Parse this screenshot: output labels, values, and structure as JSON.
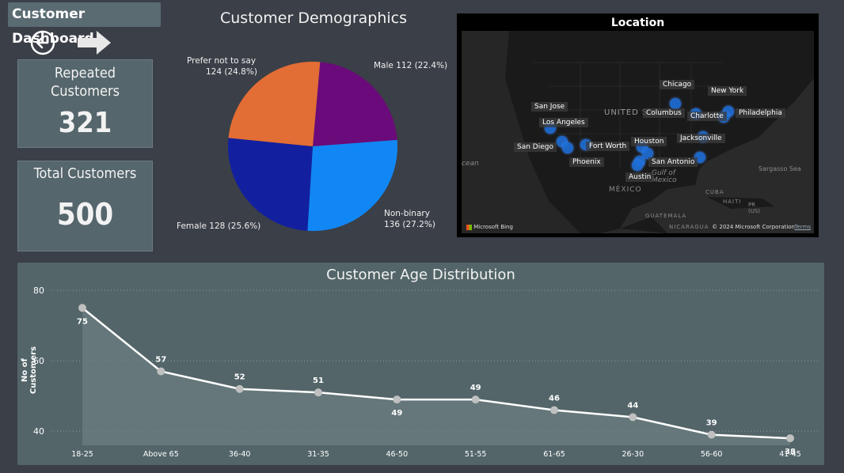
{
  "header": {
    "title": "Customer Dashboard"
  },
  "nav": {
    "back_icon": "circle-left-arrow-icon",
    "forward_icon": "right-arrow-icon"
  },
  "cards": {
    "repeated": {
      "label": "Repeated Customers",
      "value": "321"
    },
    "total": {
      "label": "Total Customers",
      "value": "500"
    }
  },
  "demographics": {
    "title": "Customer Demographics",
    "labels": {
      "male": "Male 112 (22.4%)",
      "nonbinary_line1": "Non-binary",
      "nonbinary_line2": "136 (27.2%)",
      "female": "Female 128 (25.6%)",
      "prefer_line1": "Prefer not to say",
      "prefer_line2": "124 (24.8%)"
    }
  },
  "map": {
    "title": "Location",
    "cities": [
      "Chicago",
      "New York",
      "San Jose",
      "Columbus",
      "Charlotte",
      "Philadelphia",
      "Los Angeles",
      "Houston",
      "Jacksonville",
      "San Diego",
      "Fort Worth",
      "Phoenix",
      "San Antonio",
      "Austin"
    ],
    "geo_labels": {
      "us": "UNITED S",
      "gulf": "Gulf of Mexico",
      "mexico": "MÉXICO",
      "guatemala": "GUATEMALA",
      "nicaragua": "NICARAGUA",
      "cuba": "CUBA",
      "haiti": "HAITI",
      "pr": "PR (US)",
      "sargasso": "Sargasso Sea",
      "ocean": "cean"
    },
    "footer_brand": "Microsoft Bing",
    "footer_copyright": "© 2024 Microsoft Corporation",
    "footer_terms": "Terms"
  },
  "chart_data": [
    {
      "type": "pie",
      "title": "Customer Demographics",
      "categories": [
        "Male",
        "Non-binary",
        "Female",
        "Prefer not to say"
      ],
      "values": [
        112,
        136,
        128,
        124
      ],
      "percents": [
        22.4,
        27.2,
        25.6,
        24.8
      ],
      "colors": [
        "#6b0a7a",
        "#1187f5",
        "#1220a0",
        "#e26d35"
      ]
    },
    {
      "type": "area",
      "title": "Customer Age Distribution",
      "xlabel": "",
      "ylabel": "No of Customers",
      "categories": [
        "18-25",
        "Above 65",
        "36-40",
        "31-35",
        "46-50",
        "51-55",
        "61-65",
        "26-30",
        "56-60",
        "41-45"
      ],
      "values": [
        75,
        57,
        52,
        51,
        49,
        49,
        46,
        44,
        39,
        38
      ],
      "yticks": [
        "80",
        "60",
        "40"
      ],
      "ylim": [
        36,
        80
      ],
      "grid": true
    }
  ]
}
